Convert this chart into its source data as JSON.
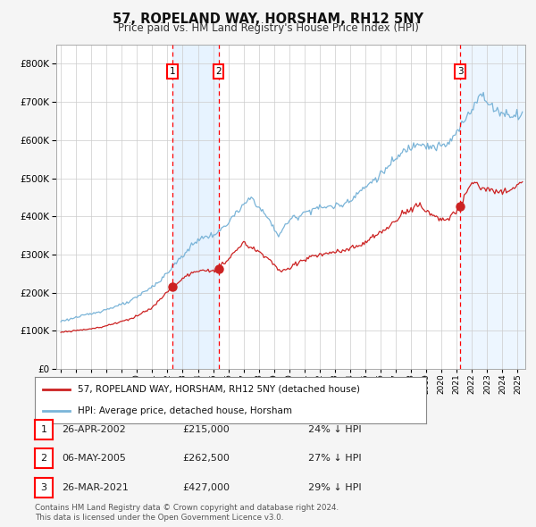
{
  "title": "57, ROPELAND WAY, HORSHAM, RH12 5NY",
  "subtitle": "Price paid vs. HM Land Registry's House Price Index (HPI)",
  "legend_line1": "57, ROPELAND WAY, HORSHAM, RH12 5NY (detached house)",
  "legend_line2": "HPI: Average price, detached house, Horsham",
  "transactions": [
    {
      "label": "1",
      "date": "26-APR-2002",
      "price": 215000,
      "pct": "24%",
      "dir": "↓",
      "year": 2002.32
    },
    {
      "label": "2",
      "date": "06-MAY-2005",
      "price": 262500,
      "pct": "27%",
      "dir": "↓",
      "year": 2005.35
    },
    {
      "label": "3",
      "date": "26-MAR-2021",
      "price": 427000,
      "pct": "29%",
      "dir": "↓",
      "year": 2021.23
    }
  ],
  "footnote1": "Contains HM Land Registry data © Crown copyright and database right 2024.",
  "footnote2": "This data is licensed under the Open Government Licence v3.0.",
  "hpi_color": "#7ab4d8",
  "price_color": "#cc2222",
  "shade_color": "#ddeeff",
  "plot_bg": "#ffffff",
  "fig_bg": "#f5f5f5",
  "grid_color": "#cccccc",
  "ylim": [
    0,
    850000
  ],
  "xlim_start": 1994.7,
  "xlim_end": 2025.5
}
